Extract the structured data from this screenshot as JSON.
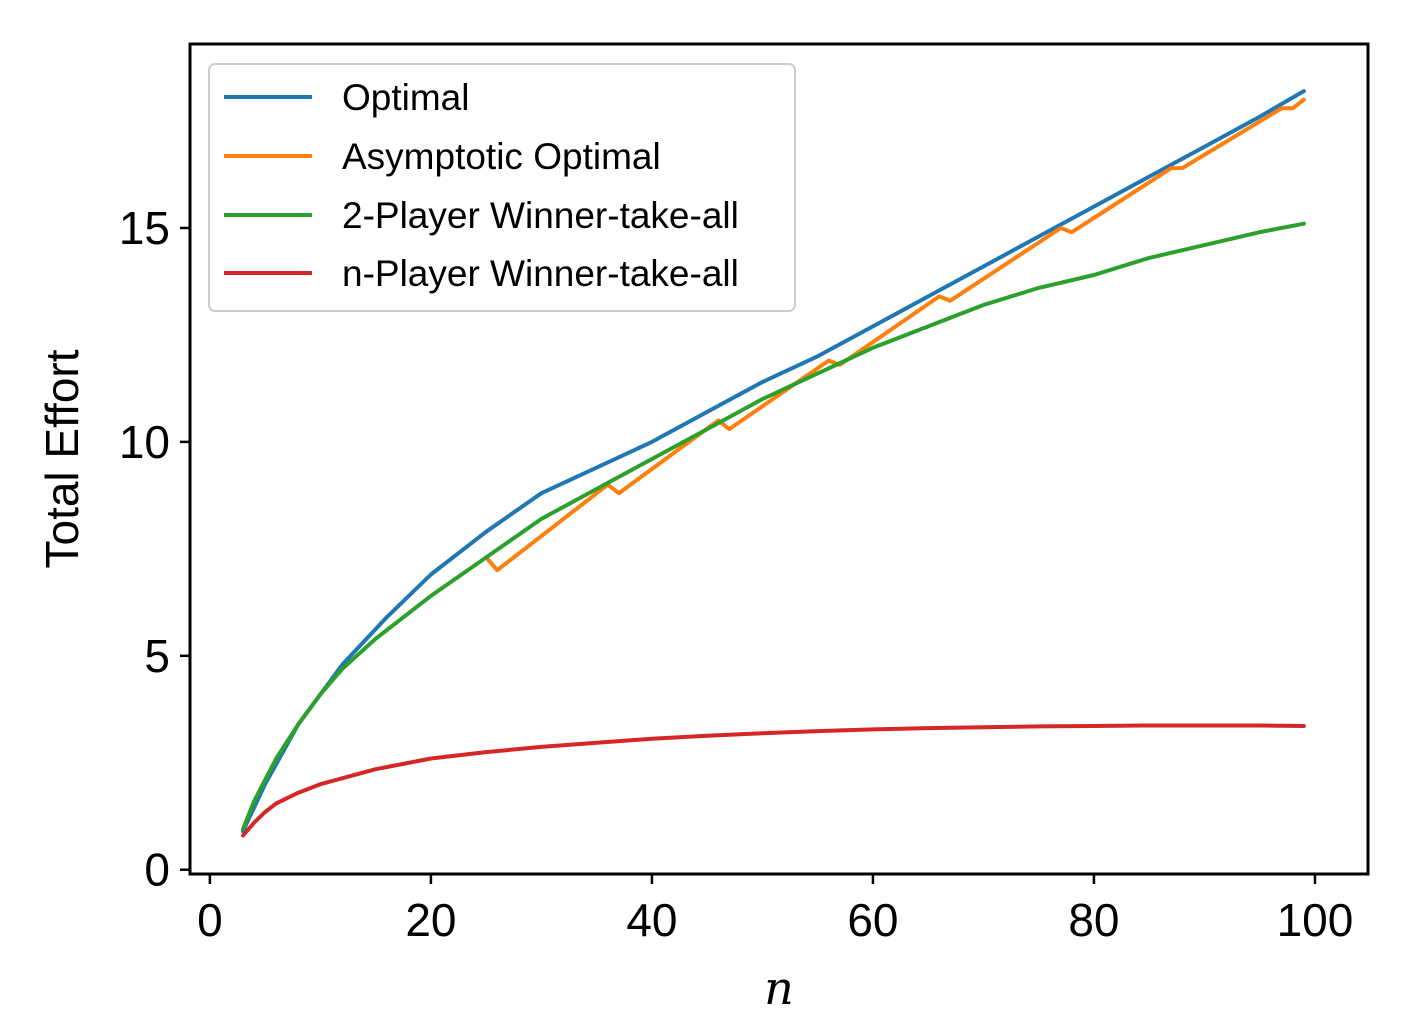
{
  "chart_data": {
    "type": "line",
    "title": "",
    "xlabel": "n",
    "ylabel": "Total Effort",
    "xlim": [
      -1.8,
      104.8
    ],
    "ylim": [
      -0.1,
      19.3
    ],
    "xticks": [
      0,
      20,
      40,
      60,
      80,
      100
    ],
    "yticks": [
      0,
      5,
      10,
      15
    ],
    "grid": false,
    "legend_position": "top-left",
    "series": [
      {
        "name": "Optimal",
        "color": "#1f77b4",
        "points": [
          [
            3,
            0.9
          ],
          [
            5,
            2.0
          ],
          [
            8,
            3.4
          ],
          [
            12,
            4.8
          ],
          [
            16,
            5.9
          ],
          [
            20,
            6.9
          ],
          [
            25,
            7.9
          ],
          [
            30,
            8.8
          ],
          [
            35,
            9.4
          ],
          [
            40,
            10.0
          ],
          [
            45,
            10.7
          ],
          [
            50,
            11.4
          ],
          [
            55,
            12.0
          ],
          [
            60,
            12.7
          ],
          [
            65,
            13.4
          ],
          [
            70,
            14.1
          ],
          [
            75,
            14.8
          ],
          [
            80,
            15.5
          ],
          [
            85,
            16.2
          ],
          [
            90,
            16.9
          ],
          [
            95,
            17.6
          ],
          [
            99,
            18.2
          ]
        ]
      },
      {
        "name": "Asymptotic Optimal",
        "color": "#ff7f0e",
        "points": [
          [
            25,
            7.3
          ],
          [
            26,
            7.0
          ],
          [
            36,
            9.0
          ],
          [
            37,
            8.8
          ],
          [
            46,
            10.5
          ],
          [
            47,
            10.3
          ],
          [
            56,
            11.9
          ],
          [
            57,
            11.8
          ],
          [
            66,
            13.4
          ],
          [
            67,
            13.3
          ],
          [
            77,
            15.0
          ],
          [
            78,
            14.9
          ],
          [
            87,
            16.4
          ],
          [
            88,
            16.4
          ],
          [
            97,
            17.8
          ],
          [
            98,
            17.8
          ],
          [
            99,
            18.0
          ]
        ]
      },
      {
        "name": "2-Player Winner-take-all",
        "color": "#2ca02c",
        "points": [
          [
            3,
            0.95
          ],
          [
            4,
            1.6
          ],
          [
            5,
            2.1
          ],
          [
            6,
            2.6
          ],
          [
            8,
            3.4
          ],
          [
            10,
            4.1
          ],
          [
            12,
            4.7
          ],
          [
            15,
            5.4
          ],
          [
            20,
            6.4
          ],
          [
            25,
            7.3
          ],
          [
            30,
            8.2
          ],
          [
            35,
            8.9
          ],
          [
            40,
            9.6
          ],
          [
            45,
            10.3
          ],
          [
            50,
            11.0
          ],
          [
            55,
            11.6
          ],
          [
            60,
            12.2
          ],
          [
            65,
            12.7
          ],
          [
            70,
            13.2
          ],
          [
            75,
            13.6
          ],
          [
            80,
            13.9
          ],
          [
            85,
            14.3
          ],
          [
            90,
            14.6
          ],
          [
            95,
            14.9
          ],
          [
            99,
            15.1
          ]
        ]
      },
      {
        "name": "n-Player Winner-take-all",
        "color": "#d62728",
        "points": [
          [
            3,
            0.8
          ],
          [
            4,
            1.1
          ],
          [
            5,
            1.35
          ],
          [
            6,
            1.55
          ],
          [
            8,
            1.8
          ],
          [
            10,
            2.0
          ],
          [
            15,
            2.35
          ],
          [
            20,
            2.6
          ],
          [
            25,
            2.75
          ],
          [
            30,
            2.87
          ],
          [
            35,
            2.97
          ],
          [
            40,
            3.06
          ],
          [
            45,
            3.13
          ],
          [
            50,
            3.19
          ],
          [
            55,
            3.24
          ],
          [
            60,
            3.28
          ],
          [
            65,
            3.31
          ],
          [
            70,
            3.33
          ],
          [
            75,
            3.35
          ],
          [
            80,
            3.36
          ],
          [
            85,
            3.37
          ],
          [
            90,
            3.37
          ],
          [
            95,
            3.37
          ],
          [
            99,
            3.36
          ]
        ]
      }
    ]
  }
}
